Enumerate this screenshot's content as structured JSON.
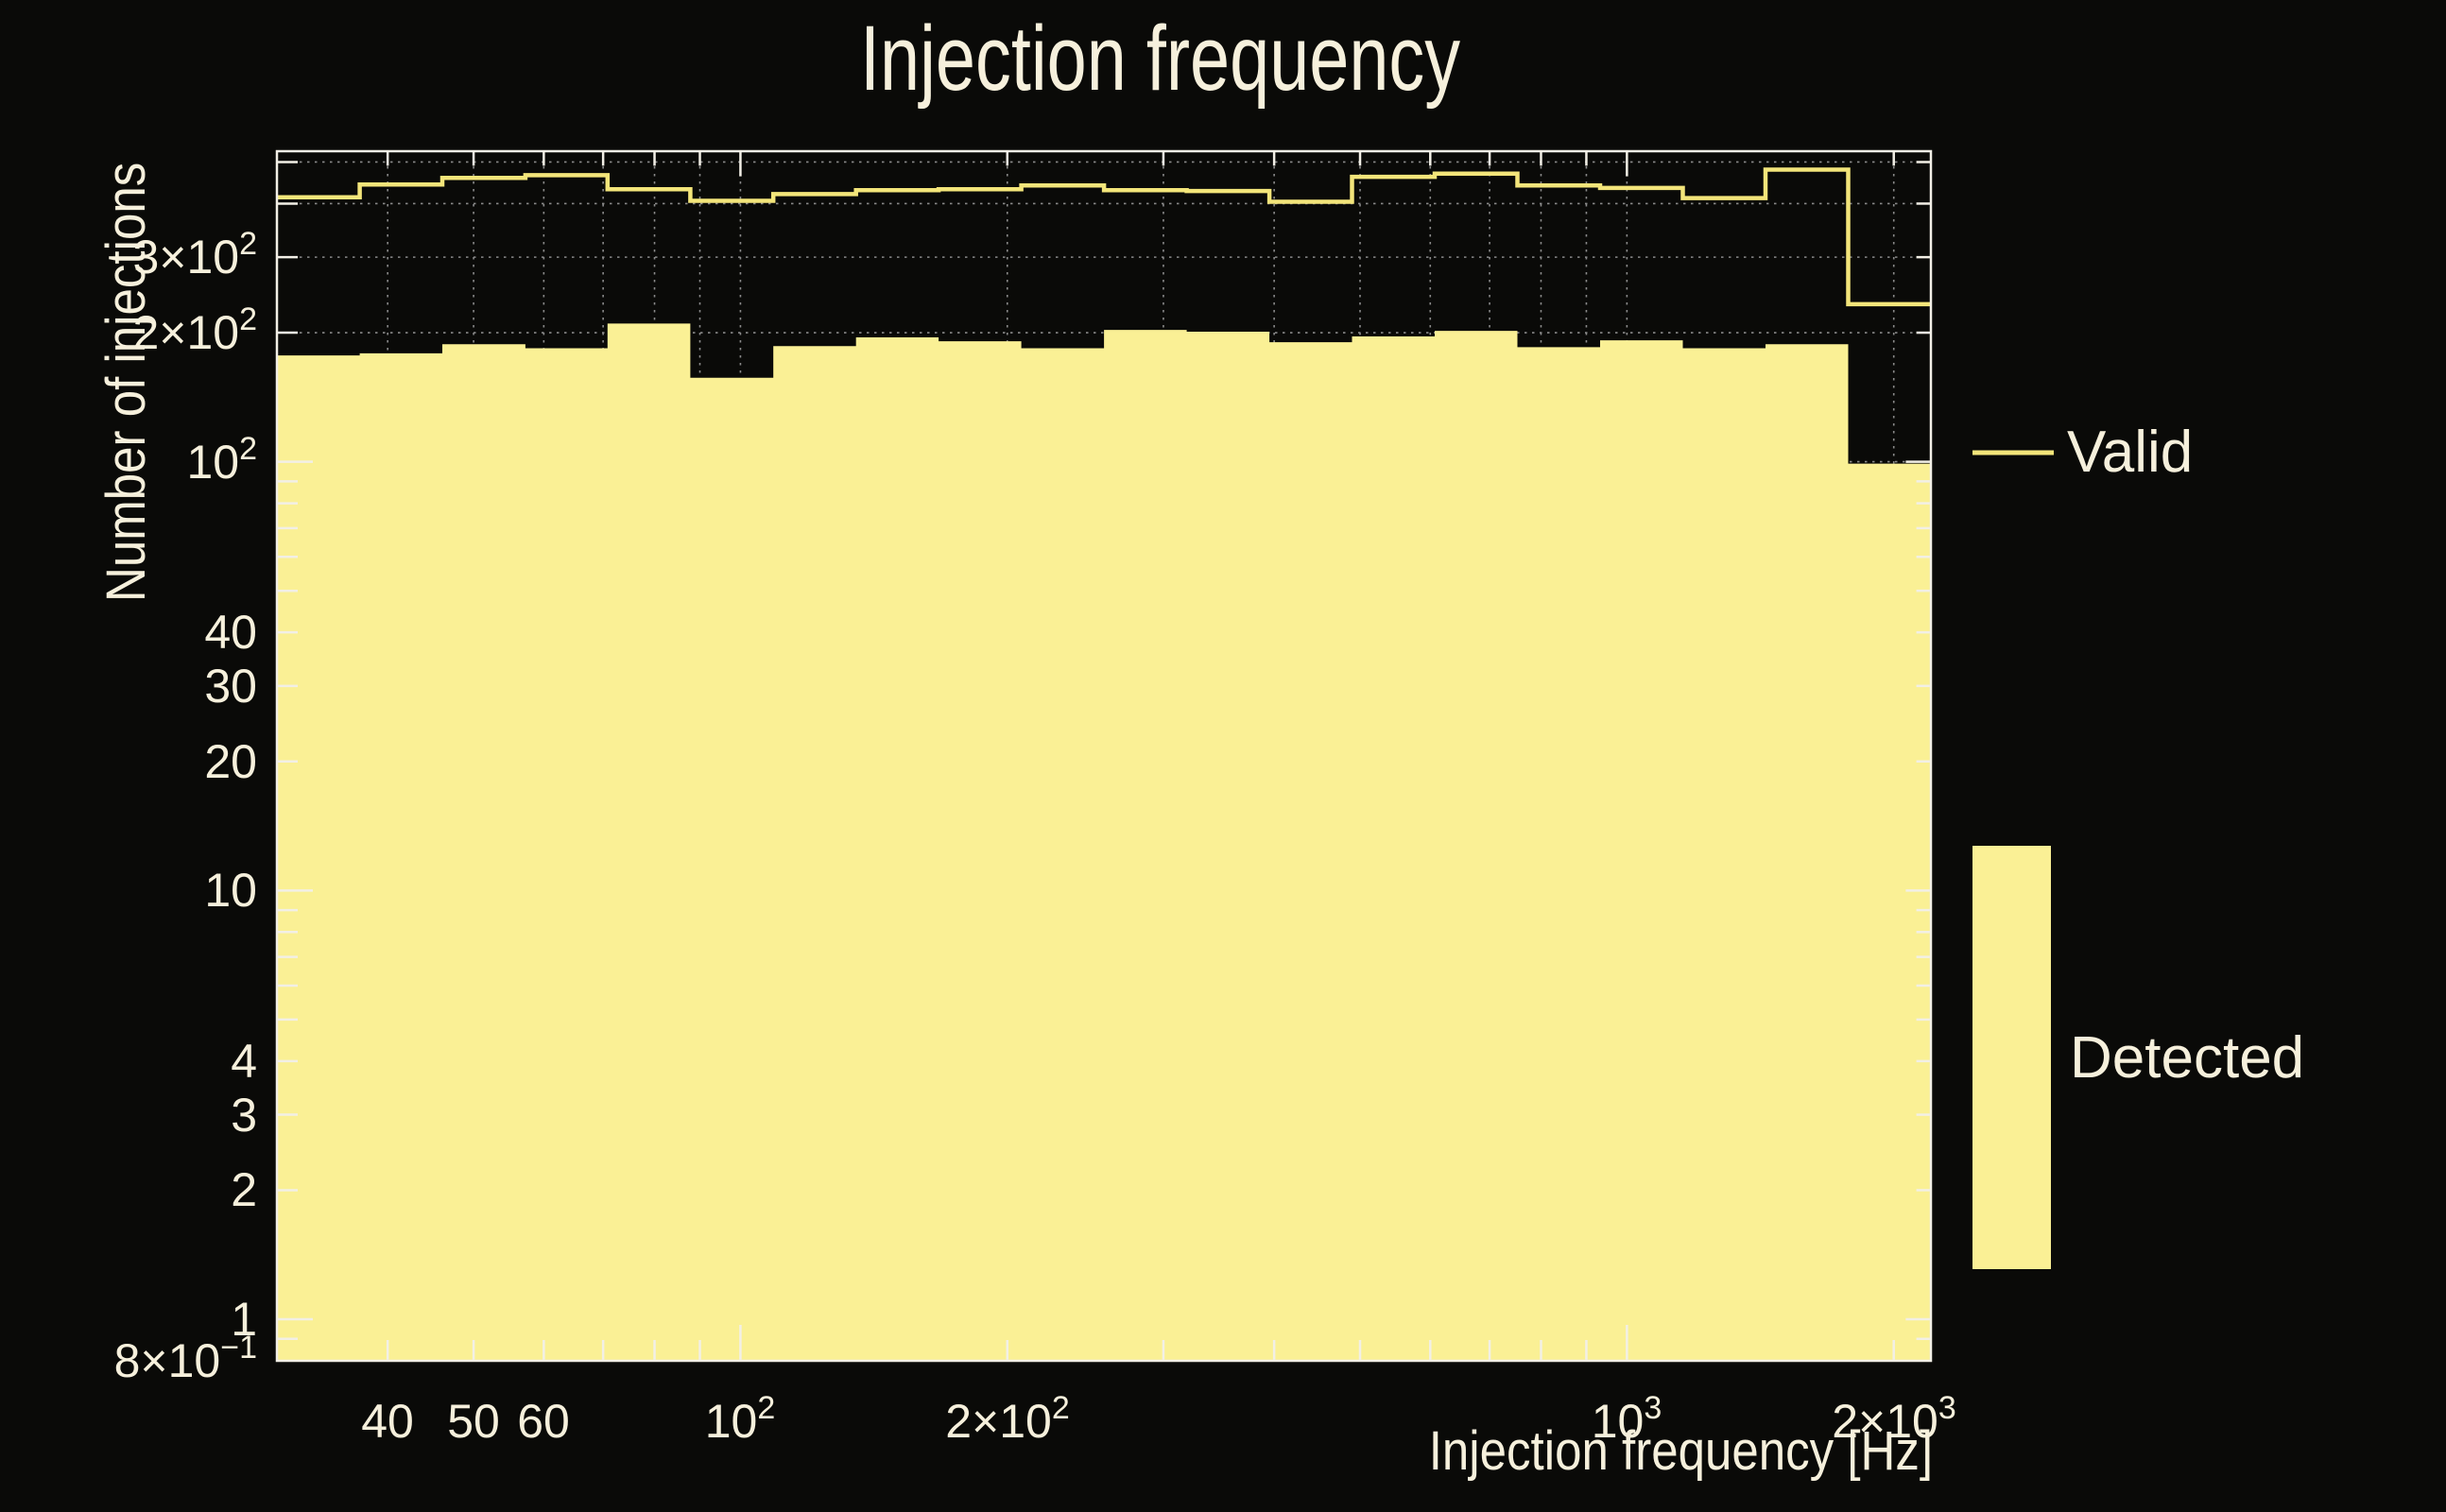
{
  "chart_data": {
    "type": "histogram-step",
    "title": "Injection frequency",
    "xlabel": "Injection frequency [Hz]",
    "ylabel": "Number of injections",
    "x_scale": "log",
    "y_scale": "log",
    "xlim": [
      30,
      2202.5
    ],
    "ylim": [
      0.8,
      530
    ],
    "grid": true,
    "bin_edges_hz": [
      30.0,
      37.2,
      46.1,
      57.2,
      70.8,
      87.8,
      108.9,
      135.0,
      167.3,
      207.4,
      257.1,
      318.7,
      395.1,
      489.7,
      607.0,
      752.5,
      932.8,
      1156.3,
      1433.4,
      1776.8,
      2202.5
    ],
    "series": [
      {
        "name": "Valid",
        "style": "line",
        "color": "#f3e57a",
        "values": [
          414,
          443,
          459,
          466,
          432,
          406,
          421,
          430,
          432,
          441,
          430,
          428,
          404,
          462,
          470,
          441,
          435,
          412,
          480,
          233
        ]
      },
      {
        "name": "Detected",
        "style": "fill",
        "color": "#faf095",
        "values": [
          177,
          179,
          188,
          184,
          210,
          157,
          186,
          195,
          191,
          184,
          203,
          201,
          190,
          196,
          202,
          185,
          192,
          184,
          188,
          99
        ]
      }
    ],
    "x_ticks_labeled": [
      {
        "base": "40",
        "value": 40
      },
      {
        "base": "50",
        "value": 50
      },
      {
        "base": "60",
        "value": 60
      },
      {
        "base": "10",
        "sup": "2",
        "value": 100
      },
      {
        "base": "2×10",
        "sup": "2",
        "value": 200
      },
      {
        "base": "10",
        "sup": "3",
        "value": 1000
      },
      {
        "base": "2×10",
        "sup": "3",
        "value": 2000
      }
    ],
    "y_ticks_labeled": [
      {
        "base": "3×10",
        "sup": "2",
        "value": 300
      },
      {
        "base": "2×10",
        "sup": "2",
        "value": 200
      },
      {
        "base": "10",
        "sup": "2",
        "value": 100
      },
      {
        "base": "40",
        "value": 40
      },
      {
        "base": "30",
        "value": 30
      },
      {
        "base": "20",
        "value": 20
      },
      {
        "base": "10",
        "value": 10
      },
      {
        "base": "4",
        "value": 4
      },
      {
        "base": "3",
        "value": 3
      },
      {
        "base": "2",
        "value": 2
      },
      {
        "base": "1",
        "value": 1
      },
      {
        "base": "8×10",
        "sup": "−1",
        "value": 0.8
      }
    ],
    "x_grid_values": [
      40,
      50,
      60,
      70,
      80,
      90,
      100,
      200,
      300,
      400,
      500,
      600,
      700,
      800,
      900,
      1000,
      2000
    ],
    "y_grid_values": [
      0.9,
      1,
      2,
      3,
      4,
      5,
      6,
      7,
      8,
      9,
      10,
      20,
      30,
      40,
      50,
      60,
      70,
      80,
      90,
      100,
      200,
      300,
      400,
      500
    ],
    "x_major_values": [
      100,
      1000
    ],
    "y_major_values": [
      1,
      10,
      100
    ],
    "legend": {
      "position": "right",
      "entries": [
        {
          "label": "Valid",
          "swatch": "line"
        },
        {
          "label": "Detected",
          "swatch": "box"
        }
      ]
    }
  },
  "colors": {
    "background": "#0a0a08",
    "text": "#f6f0dc",
    "frame": "#f2efe6",
    "grid": "#8a8a8a",
    "fill_yellow": "#faf095",
    "line_yellow": "#f3e57a"
  }
}
